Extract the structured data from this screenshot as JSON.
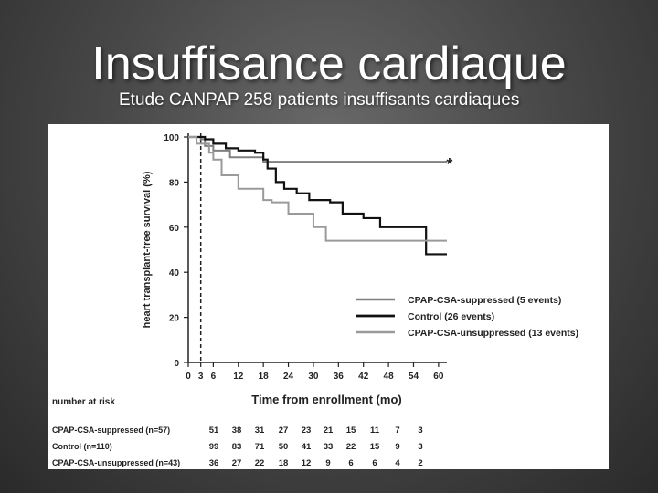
{
  "slide": {
    "title": "Insuffisance cardiaque",
    "subtitle": "Etude CANPAP 258 patients insuffisants cardiaques"
  },
  "colors": {
    "suppressed": "#808080",
    "control": "#111111",
    "unsuppressed": "#9a9a9a",
    "axis": "#222222"
  },
  "chart_data": {
    "type": "line",
    "step": true,
    "xlabel": "Time from enrollment (mo)",
    "ylabel": "heart transplant-free survival (%)",
    "xlim": [
      0,
      62
    ],
    "ylim": [
      0,
      100
    ],
    "x_ticks": [
      0,
      3,
      6,
      12,
      18,
      24,
      30,
      36,
      42,
      48,
      54,
      60
    ],
    "y_ticks": [
      0,
      20,
      40,
      60,
      80,
      100
    ],
    "dashed_vline_x": 3,
    "annotation": {
      "text": "*",
      "x": 61,
      "y": 89
    },
    "legend_position": "right",
    "series": [
      {
        "name": "CPAP-CSA-suppressed (5 events)",
        "color_key": "suppressed",
        "width": 2,
        "points": [
          [
            0,
            100
          ],
          [
            3,
            99
          ],
          [
            4,
            96
          ],
          [
            6,
            94
          ],
          [
            10,
            91
          ],
          [
            18,
            89
          ],
          [
            62,
            89
          ]
        ]
      },
      {
        "name": "Control  (26 events)",
        "color_key": "control",
        "width": 2.2,
        "points": [
          [
            0,
            100
          ],
          [
            4,
            99
          ],
          [
            6,
            97
          ],
          [
            9,
            95
          ],
          [
            12,
            94
          ],
          [
            16,
            93
          ],
          [
            18,
            90
          ],
          [
            19,
            86
          ],
          [
            21,
            80
          ],
          [
            23,
            77
          ],
          [
            25,
            77
          ],
          [
            26,
            75
          ],
          [
            28,
            75
          ],
          [
            29,
            72
          ],
          [
            32,
            72
          ],
          [
            34,
            71
          ],
          [
            36,
            71
          ],
          [
            37,
            66
          ],
          [
            40,
            66
          ],
          [
            42,
            64
          ],
          [
            45,
            64
          ],
          [
            46,
            60
          ],
          [
            56,
            60
          ],
          [
            57,
            48
          ],
          [
            62,
            48
          ]
        ]
      },
      {
        "name": "CPAP-CSA-unsuppressed (13 events)",
        "color_key": "unsuppressed",
        "width": 2,
        "points": [
          [
            0,
            100
          ],
          [
            2,
            97
          ],
          [
            5,
            93
          ],
          [
            6,
            90
          ],
          [
            8,
            83
          ],
          [
            12,
            77
          ],
          [
            18,
            72
          ],
          [
            20,
            71
          ],
          [
            24,
            66
          ],
          [
            30,
            60
          ],
          [
            32,
            60
          ],
          [
            33,
            54
          ],
          [
            62,
            54
          ]
        ]
      }
    ],
    "risk_table": {
      "title": "number at risk",
      "rows": [
        {
          "label": "CPAP-CSA-suppressed  (n=57)",
          "values": [
            "51",
            "38",
            "31",
            "27",
            "23",
            "21",
            "15",
            "11",
            "7",
            "3"
          ]
        },
        {
          "label": "Control (n=110)",
          "values": [
            "99",
            "83",
            "71",
            "50",
            "41",
            "33",
            "22",
            "15",
            "9",
            "3"
          ]
        },
        {
          "label": "CPAP-CSA-unsuppressed (n=43)",
          "values": [
            "36",
            "27",
            "22",
            "18",
            "12",
            "9",
            "6",
            "6",
            "4",
            "2"
          ]
        }
      ]
    }
  }
}
